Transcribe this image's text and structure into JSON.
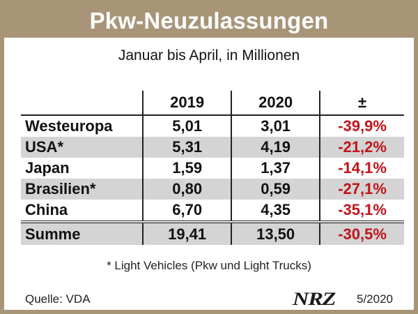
{
  "chart_data": {
    "type": "table",
    "title": "Pkw-Neuzulassungen",
    "subtitle": "Januar bis April, in Millionen",
    "columns": [
      "",
      "2019",
      "2020",
      "±"
    ],
    "rows": [
      {
        "name": "Westeuropa",
        "y2019": "5,01",
        "y2020": "3,01",
        "change": "-39,9%"
      },
      {
        "name": "USA*",
        "y2019": "5,31",
        "y2020": "4,19",
        "change": "-21,2%"
      },
      {
        "name": "Japan",
        "y2019": "1,59",
        "y2020": "1,37",
        "change": "-14,1%"
      },
      {
        "name": "Brasilien*",
        "y2019": "0,80",
        "y2020": "0,59",
        "change": "-27,1%"
      },
      {
        "name": "China",
        "y2019": "6,70",
        "y2020": "4,35",
        "change": "-35,1%"
      }
    ],
    "total": {
      "name": "Summe",
      "y2019": "19,41",
      "y2020": "13,50",
      "change": "-30,5%"
    },
    "footnote": "* Light Vehicles (Pkw und Light Trucks)",
    "source": "Quelle: VDA",
    "logo": "NRZ",
    "date": "5/2020"
  },
  "colors": {
    "brand_frame": "#a89578",
    "negative": "#c0141b",
    "shade": "#d4d4d4"
  }
}
